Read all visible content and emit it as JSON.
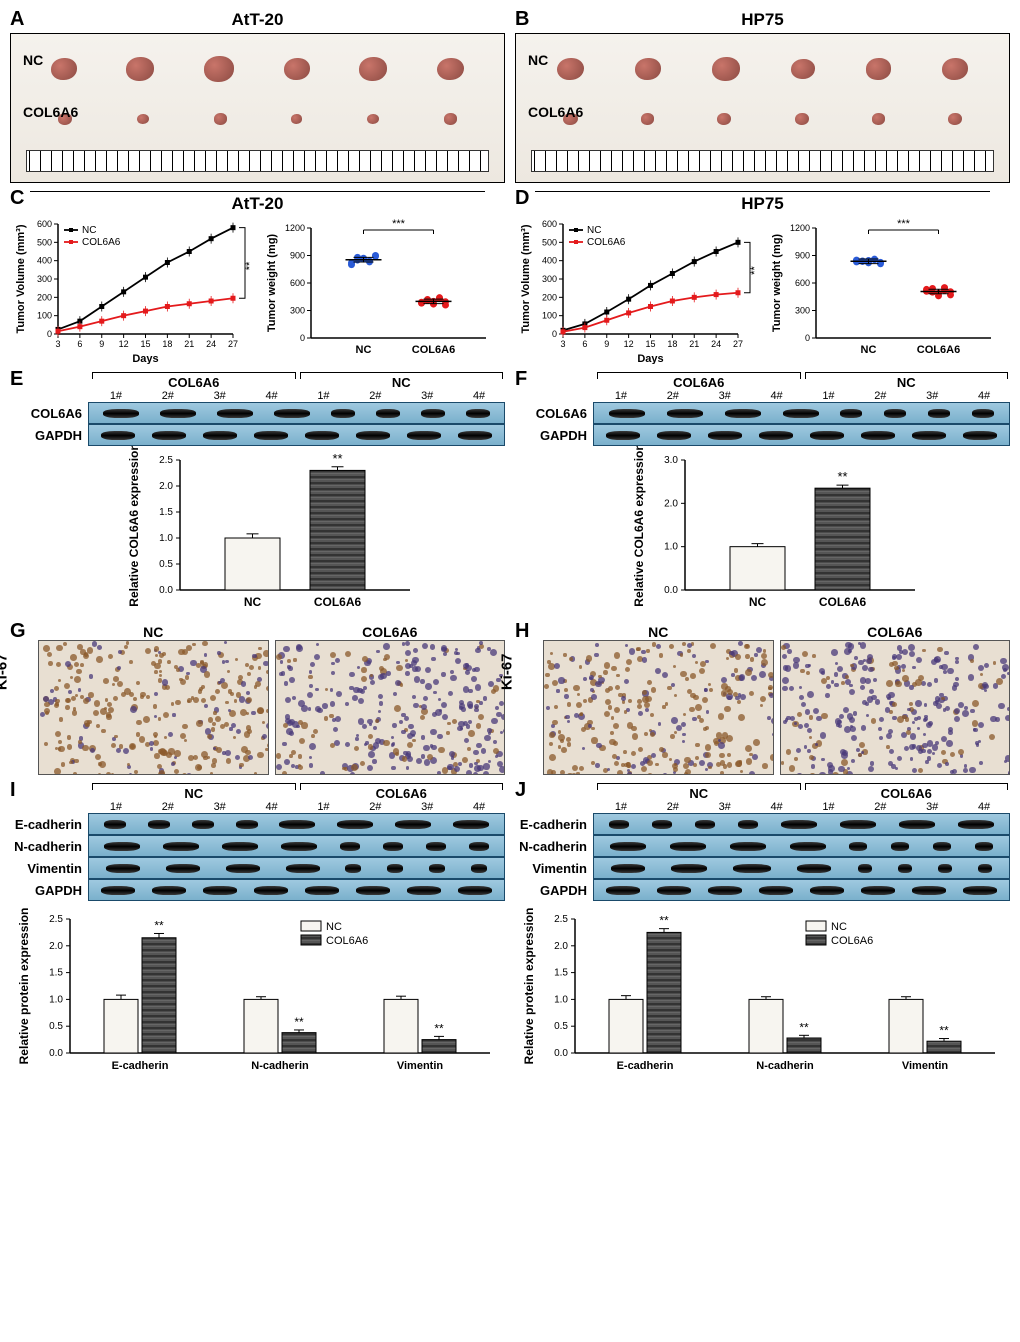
{
  "colors": {
    "nc_line": "#000000",
    "col6a6_line": "#e41a1c",
    "nc_marker": "#2a5bd7",
    "col6a6_marker": "#e41a1c",
    "bar_nc_fill": "#f7f5f0",
    "bar_col_fill": "#4a4a4a",
    "blot_bg": "#8fc1db",
    "ihc_brown": "#b08968",
    "ihc_purple": "#6b5b95",
    "axis": "#000000"
  },
  "panels": {
    "A": {
      "label": "A",
      "title": "AtT-20",
      "rows": [
        "NC",
        "COL6A6"
      ],
      "tumor_sizes_nc": [
        26,
        28,
        30,
        26,
        28,
        27
      ],
      "tumor_sizes_col": [
        14,
        12,
        13,
        11,
        12,
        13
      ]
    },
    "B": {
      "label": "B",
      "title": "HP75",
      "rows": [
        "NC",
        "COL6A6"
      ],
      "tumor_sizes_nc": [
        27,
        26,
        28,
        24,
        25,
        26
      ],
      "tumor_sizes_col": [
        15,
        13,
        14,
        14,
        13,
        14
      ]
    },
    "C": {
      "label": "C",
      "title": "AtT-20",
      "line": {
        "xlabel": "Days",
        "ylabel": "Tumor Volume (mm³)",
        "x": [
          3,
          6,
          9,
          12,
          15,
          18,
          21,
          24,
          27
        ],
        "nc": [
          25,
          70,
          150,
          230,
          310,
          390,
          450,
          520,
          580
        ],
        "col": [
          15,
          40,
          70,
          100,
          125,
          150,
          165,
          180,
          195
        ],
        "ylim": [
          0,
          600
        ],
        "ytick": 100,
        "sig": "**",
        "legend": [
          "NC",
          "COL6A6"
        ]
      },
      "scatter": {
        "ylabel": "Tumor weight (mg)",
        "ylim": [
          0,
          1200
        ],
        "ytick": 300,
        "groups": [
          "NC",
          "COL6A6"
        ],
        "nc_points": [
          800,
          850,
          870,
          830,
          900,
          820,
          880,
          860,
          840,
          890
        ],
        "col_points": [
          380,
          420,
          400,
          440,
          360,
          390,
          410,
          370,
          430,
          395
        ],
        "sig": "***"
      }
    },
    "D": {
      "label": "D",
      "title": "HP75",
      "line": {
        "xlabel": "Days",
        "ylabel": "Tumor Volume (mm³)",
        "x": [
          3,
          6,
          9,
          12,
          15,
          18,
          21,
          24,
          27
        ],
        "nc": [
          20,
          55,
          120,
          190,
          265,
          330,
          395,
          450,
          500
        ],
        "col": [
          12,
          35,
          75,
          115,
          150,
          180,
          200,
          215,
          225
        ],
        "ylim": [
          0,
          600
        ],
        "ytick": 100,
        "sig": "**",
        "legend": [
          "NC",
          "COL6A6"
        ]
      },
      "scatter": {
        "ylabel": "Tumor weight (mg)",
        "ylim": [
          0,
          1200
        ],
        "ytick": 300,
        "groups": [
          "NC",
          "COL6A6"
        ],
        "nc_points": [
          830,
          840,
          820,
          860,
          810,
          850,
          835,
          845,
          855,
          825
        ],
        "col_points": [
          510,
          540,
          490,
          520,
          470,
          530,
          500,
          460,
          550,
          505
        ],
        "sig": "***"
      }
    },
    "E": {
      "label": "E",
      "blot": {
        "groups": [
          "COL6A6",
          "NC"
        ],
        "lanes": [
          "1#",
          "2#",
          "3#",
          "4#",
          "1#",
          "2#",
          "3#",
          "4#"
        ],
        "rows": [
          "COL6A6",
          "GAPDH"
        ],
        "band_widths": {
          "COL6A6": [
            36,
            36,
            36,
            36,
            24,
            24,
            24,
            24
          ],
          "GAPDH": [
            34,
            34,
            34,
            34,
            34,
            34,
            34,
            34
          ]
        }
      },
      "bar": {
        "ylabel": "Relative COL6A6 expression",
        "groups": [
          "NC",
          "COL6A6"
        ],
        "values": [
          1.0,
          2.3
        ],
        "err": [
          0.08,
          0.07
        ],
        "ylim": [
          0,
          2.5
        ],
        "ytick": 0.5,
        "sig": "**"
      }
    },
    "F": {
      "label": "F",
      "blot": {
        "groups": [
          "COL6A6",
          "NC"
        ],
        "lanes": [
          "1#",
          "2#",
          "3#",
          "4#",
          "1#",
          "2#",
          "3#",
          "4#"
        ],
        "rows": [
          "COL6A6",
          "GAPDH"
        ],
        "band_widths": {
          "COL6A6": [
            36,
            36,
            36,
            36,
            22,
            22,
            22,
            22
          ],
          "GAPDH": [
            34,
            34,
            34,
            34,
            34,
            34,
            34,
            34
          ]
        }
      },
      "bar": {
        "ylabel": "Relative COL6A6 expression",
        "groups": [
          "NC",
          "COL6A6"
        ],
        "values": [
          1.0,
          2.35
        ],
        "err": [
          0.07,
          0.07
        ],
        "ylim": [
          0,
          3.0
        ],
        "ytick": 1.0,
        "sig": "**"
      }
    },
    "G": {
      "label": "G",
      "marker": "Ki-67",
      "titles": [
        "NC",
        "COL6A6"
      ],
      "brown_density": [
        0.75,
        0.25
      ]
    },
    "H": {
      "label": "H",
      "marker": "Ki-67",
      "titles": [
        "NC",
        "COL6A6"
      ],
      "brown_density": [
        0.7,
        0.22
      ]
    },
    "I": {
      "label": "I",
      "blot": {
        "groups": [
          "NC",
          "COL6A6"
        ],
        "lanes": [
          "1#",
          "2#",
          "3#",
          "4#",
          "1#",
          "2#",
          "3#",
          "4#"
        ],
        "rows": [
          "E-cadherin",
          "N-cadherin",
          "Vimentin",
          "GAPDH"
        ],
        "band_widths": {
          "E-cadherin": [
            22,
            22,
            22,
            22,
            36,
            36,
            36,
            36
          ],
          "N-cadherin": [
            36,
            36,
            36,
            36,
            20,
            20,
            20,
            20
          ],
          "Vimentin": [
            34,
            34,
            34,
            34,
            16,
            16,
            16,
            16
          ],
          "GAPDH": [
            34,
            34,
            34,
            34,
            34,
            34,
            34,
            34
          ]
        }
      },
      "bar": {
        "ylabel": "Relative protein expression",
        "categories": [
          "E-cadherin",
          "N-cadherin",
          "Vimentin"
        ],
        "nc": [
          1.0,
          1.0,
          1.0
        ],
        "col": [
          2.15,
          0.38,
          0.25
        ],
        "err": [
          0.08,
          0.05,
          0.06
        ],
        "ylim": [
          0,
          2.5
        ],
        "ytick": 0.5,
        "legend": [
          "NC",
          "COL6A6"
        ],
        "sig": [
          "**",
          "**",
          "**"
        ]
      }
    },
    "J": {
      "label": "J",
      "blot": {
        "groups": [
          "NC",
          "COL6A6"
        ],
        "lanes": [
          "1#",
          "2#",
          "3#",
          "4#",
          "1#",
          "2#",
          "3#",
          "4#"
        ],
        "rows": [
          "E-cadherin",
          "N-cadherin",
          "Vimentin",
          "GAPDH"
        ],
        "band_widths": {
          "E-cadherin": [
            20,
            20,
            20,
            20,
            36,
            36,
            36,
            36
          ],
          "N-cadherin": [
            36,
            36,
            36,
            36,
            18,
            18,
            18,
            18
          ],
          "Vimentin": [
            34,
            36,
            38,
            34,
            14,
            14,
            14,
            14
          ],
          "GAPDH": [
            34,
            34,
            34,
            34,
            34,
            34,
            34,
            34
          ]
        }
      },
      "bar": {
        "ylabel": "Relative protein expression",
        "categories": [
          "E-cadherin",
          "N-cadherin",
          "Vimentin"
        ],
        "nc": [
          1.0,
          1.0,
          1.0
        ],
        "col": [
          2.25,
          0.28,
          0.22
        ],
        "err": [
          0.07,
          0.05,
          0.05
        ],
        "ylim": [
          0,
          2.5
        ],
        "ytick": 0.5,
        "legend": [
          "NC",
          "COL6A6"
        ],
        "sig": [
          "**",
          "**",
          "**"
        ]
      }
    }
  }
}
